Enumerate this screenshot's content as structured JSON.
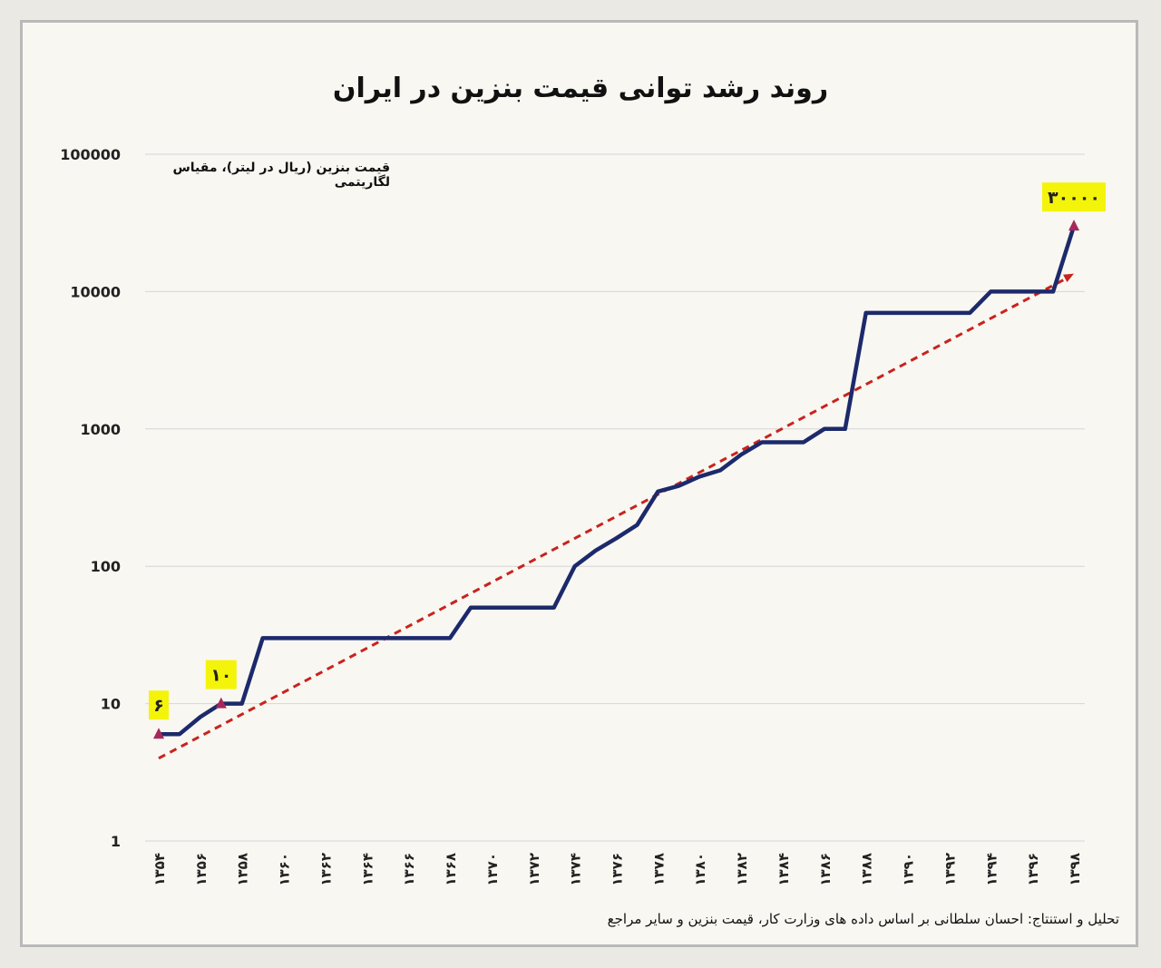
{
  "chart_data": {
    "type": "line",
    "title": "روند رشد توانی قیمت بنزین در ایران",
    "ylabel": "قیمت بنزین (ریال در لیتر)، مقیاس لگاریتمی",
    "yscale": "log",
    "ylim": [
      1,
      100000
    ],
    "yticks": [
      {
        "value": 1,
        "label": "1"
      },
      {
        "value": 10,
        "label": "10"
      },
      {
        "value": 100,
        "label": "100"
      },
      {
        "value": 1000,
        "label": "1000"
      },
      {
        "value": 10000,
        "label": "10000"
      },
      {
        "value": 100000,
        "label": "100000"
      }
    ],
    "xlim": [
      1354,
      1398
    ],
    "xticks": [
      {
        "value": 1354,
        "label": "۱۳۵۴"
      },
      {
        "value": 1356,
        "label": "۱۳۵۶"
      },
      {
        "value": 1358,
        "label": "۱۳۵۸"
      },
      {
        "value": 1360,
        "label": "۱۳۶۰"
      },
      {
        "value": 1362,
        "label": "۱۳۶۲"
      },
      {
        "value": 1364,
        "label": "۱۳۶۴"
      },
      {
        "value": 1366,
        "label": "۱۳۶۶"
      },
      {
        "value": 1368,
        "label": "۱۳۶۸"
      },
      {
        "value": 1370,
        "label": "۱۳۷۰"
      },
      {
        "value": 1372,
        "label": "۱۳۷۲"
      },
      {
        "value": 1374,
        "label": "۱۳۷۴"
      },
      {
        "value": 1376,
        "label": "۱۳۷۶"
      },
      {
        "value": 1378,
        "label": "۱۳۷۸"
      },
      {
        "value": 1380,
        "label": "۱۳۸۰"
      },
      {
        "value": 1382,
        "label": "۱۳۸۲"
      },
      {
        "value": 1384,
        "label": "۱۳۸۴"
      },
      {
        "value": 1386,
        "label": "۱۳۸۶"
      },
      {
        "value": 1388,
        "label": "۱۳۸۸"
      },
      {
        "value": 1390,
        "label": "۱۳۹۰"
      },
      {
        "value": 1392,
        "label": "۱۳۹۲"
      },
      {
        "value": 1394,
        "label": "۱۳۹۴"
      },
      {
        "value": 1396,
        "label": "۱۳۹۶"
      },
      {
        "value": 1398,
        "label": "۱۳۹۸"
      }
    ],
    "grid": true,
    "series": [
      {
        "color": "#1c2a6b",
        "points": [
          {
            "x": 1354,
            "y": 6
          },
          {
            "x": 1355,
            "y": 6
          },
          {
            "x": 1356,
            "y": 8
          },
          {
            "x": 1357,
            "y": 10
          },
          {
            "x": 1358,
            "y": 10
          },
          {
            "x": 1359,
            "y": 30
          },
          {
            "x": 1368,
            "y": 30
          },
          {
            "x": 1369,
            "y": 50
          },
          {
            "x": 1373,
            "y": 50
          },
          {
            "x": 1374,
            "y": 100
          },
          {
            "x": 1375,
            "y": 130
          },
          {
            "x": 1376,
            "y": 160
          },
          {
            "x": 1377,
            "y": 200
          },
          {
            "x": 1378,
            "y": 350
          },
          {
            "x": 1379,
            "y": 385
          },
          {
            "x": 1380,
            "y": 450
          },
          {
            "x": 1381,
            "y": 500
          },
          {
            "x": 1382,
            "y": 650
          },
          {
            "x": 1383,
            "y": 800
          },
          {
            "x": 1385,
            "y": 800
          },
          {
            "x": 1386,
            "y": 1000
          },
          {
            "x": 1387,
            "y": 1000
          },
          {
            "x": 1388,
            "y": 7000
          },
          {
            "x": 1393,
            "y": 7000
          },
          {
            "x": 1394,
            "y": 10000
          },
          {
            "x": 1397,
            "y": 10000
          },
          {
            "x": 1398,
            "y": 30000
          }
        ]
      }
    ],
    "trendline": {
      "color": "#c8231e",
      "style": "dashed",
      "from": {
        "x": 1354,
        "y": 4
      },
      "to": {
        "x": 1398,
        "y": 13500
      }
    },
    "marker_color": "#a7285a",
    "highlight_color": "#f4f40a",
    "callouts": [
      {
        "x": 1354,
        "y": 6,
        "label": "۶"
      },
      {
        "x": 1357,
        "y": 10,
        "label": "۱۰"
      },
      {
        "x": 1398,
        "y": 30000,
        "label": "۳۰۰۰۰"
      }
    ]
  },
  "source_note": "تحلیل و استنتاج: احسان سلطانی بر اساس داده های وزارت کار، قیمت بنزین و سایر مراجع"
}
